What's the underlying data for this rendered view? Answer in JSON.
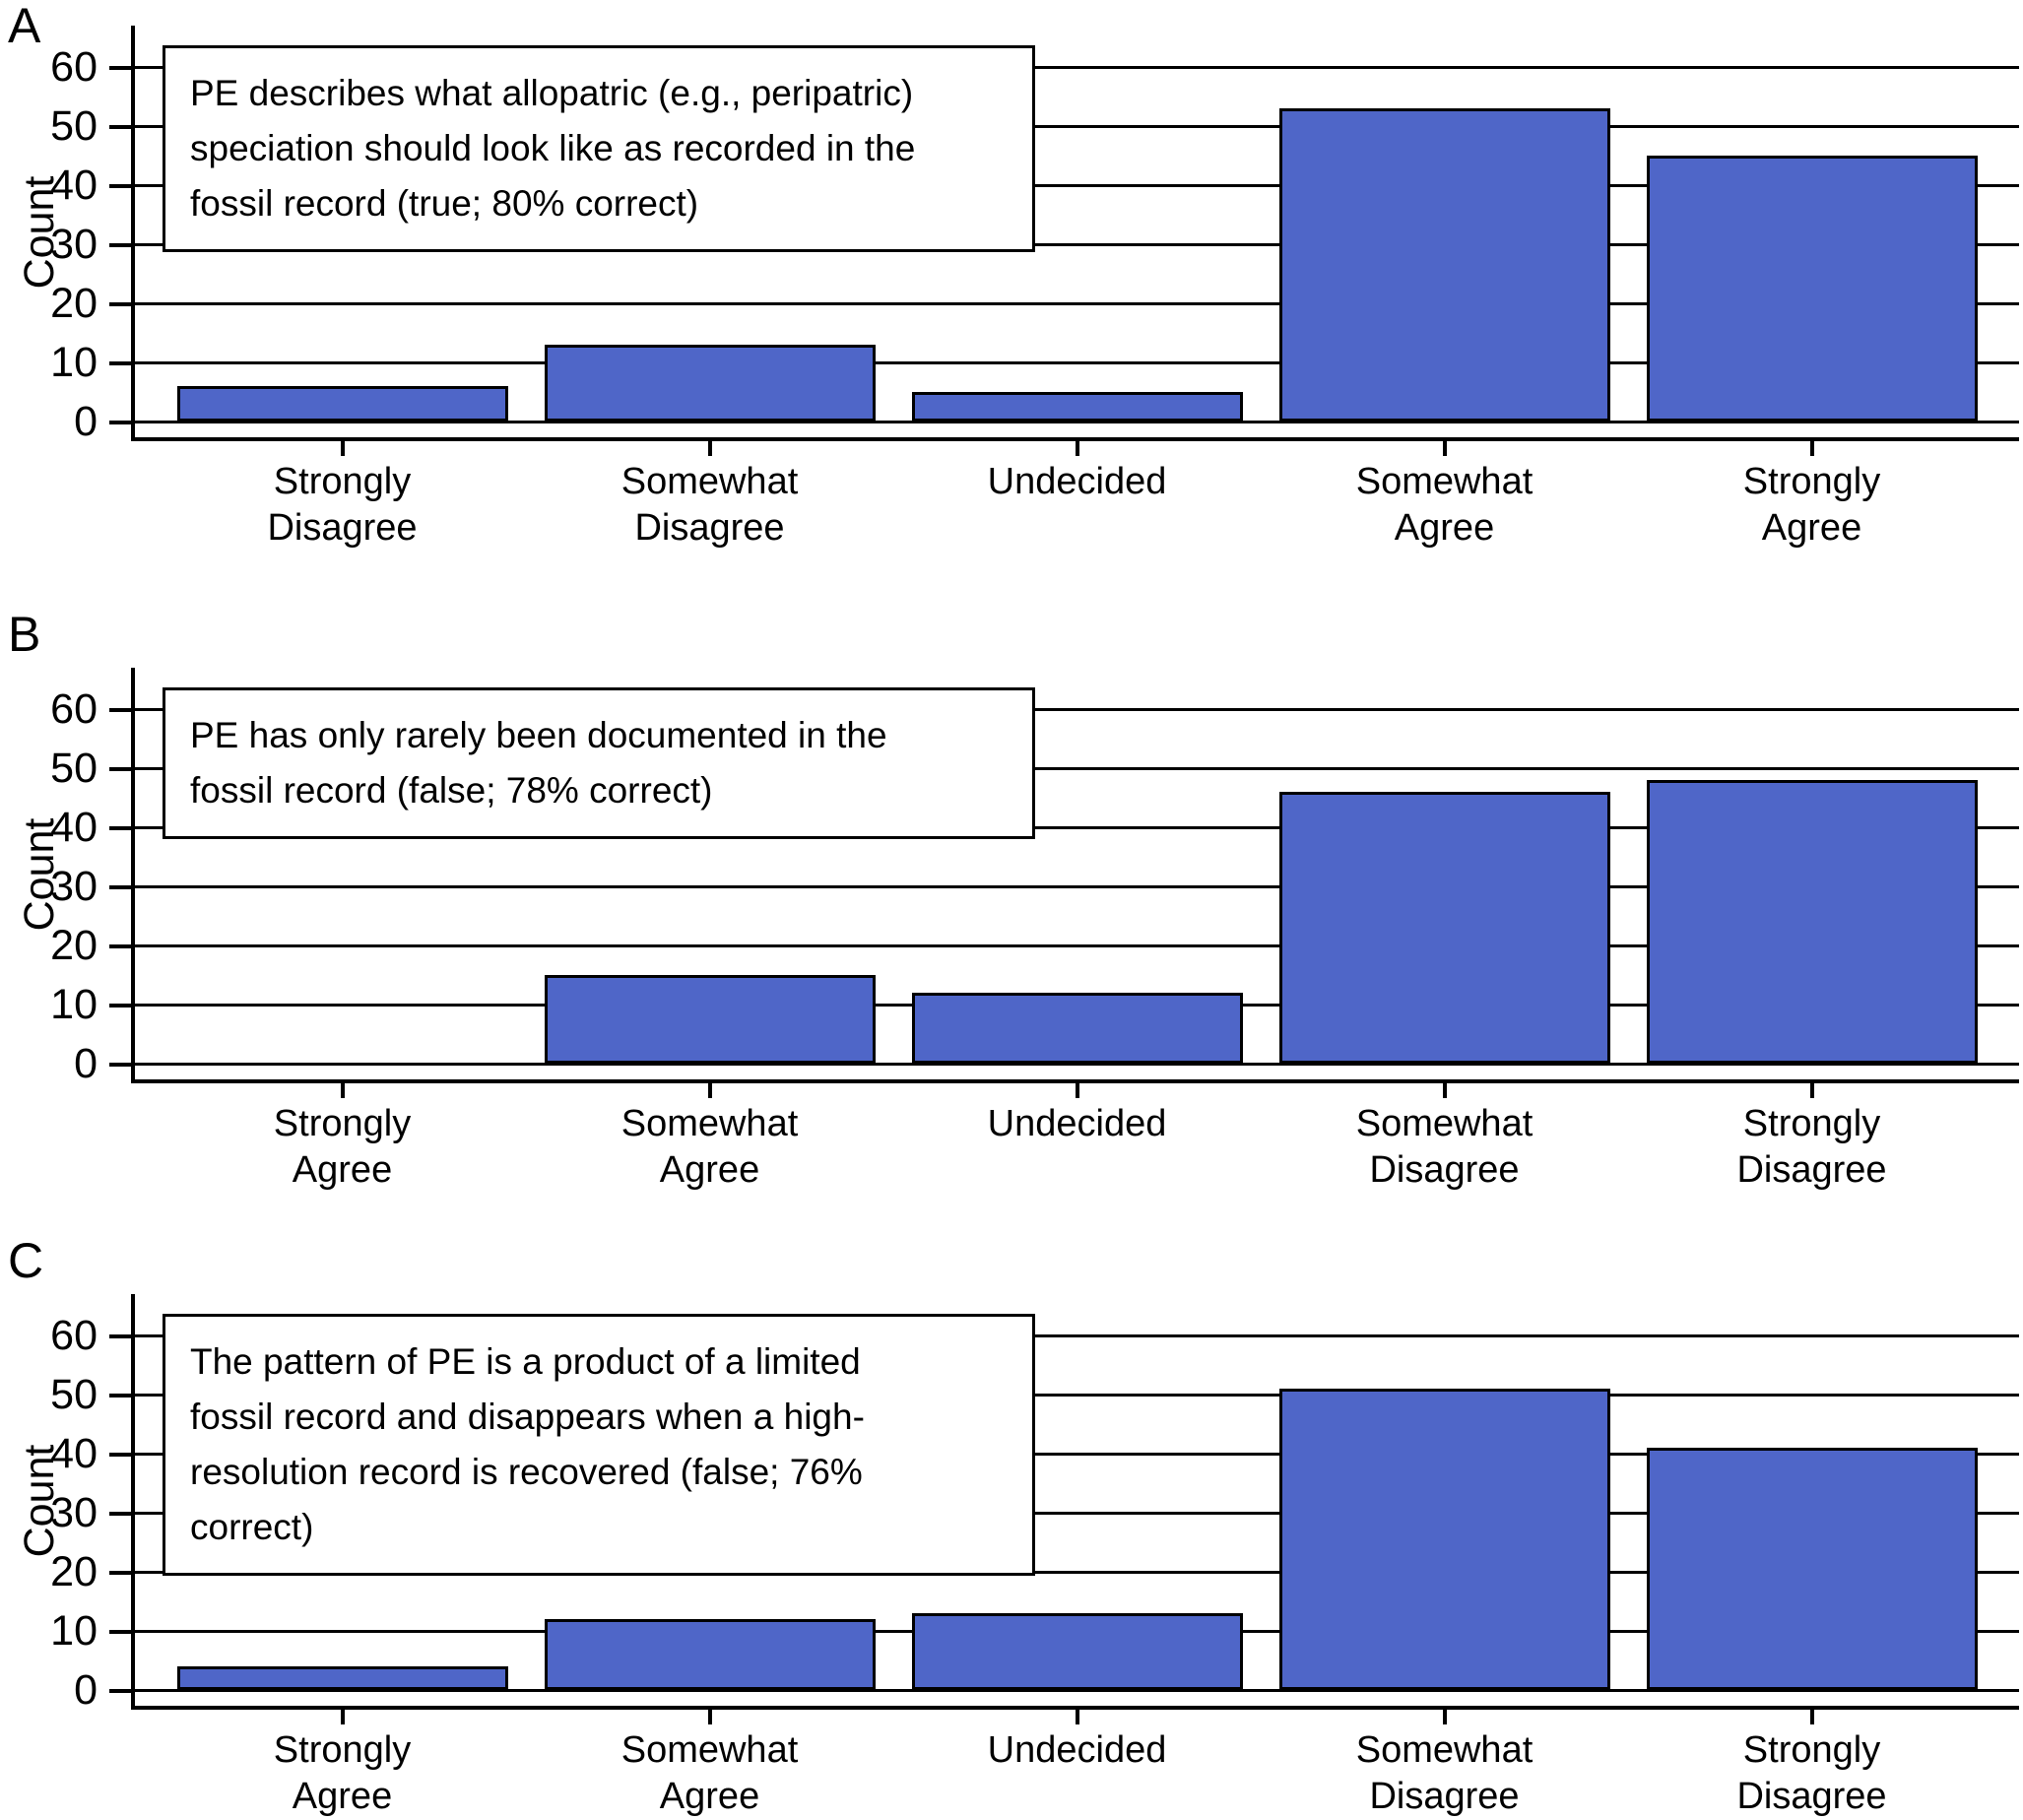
{
  "figure_title": "",
  "chart_data": [
    {
      "type": "bar",
      "panel_label": "A",
      "annotation": "PE describes what allopatric (e.g., peripatric)\nspeciation should look like as recorded in the\nfossil record (true; 80% correct)",
      "categories": [
        "Strongly\nDisagree",
        "Somewhat\nDisagree",
        "Undecided",
        "Somewhat\nAgree",
        "Strongly\nAgree"
      ],
      "values": [
        6,
        13,
        5,
        53,
        45
      ],
      "xlabel": "",
      "ylabel": "Count",
      "ylim": [
        0,
        66
      ],
      "yticks": [
        0,
        10,
        20,
        30,
        40,
        50,
        60
      ],
      "grid": "horizontal",
      "legend": "none",
      "bar_color": "#4f66c8",
      "bar_border_color": "#000000"
    },
    {
      "type": "bar",
      "panel_label": "B",
      "annotation": "PE has only rarely been documented in the\nfossil record (false; 78% correct)",
      "categories": [
        "Strongly\nAgree",
        "Somewhat\nAgree",
        "Undecided",
        "Somewhat\nDisagree",
        "Strongly\nDisagree"
      ],
      "values": [
        0,
        15,
        12,
        46,
        48
      ],
      "xlabel": "",
      "ylabel": "Count",
      "ylim": [
        0,
        66
      ],
      "yticks": [
        0,
        10,
        20,
        30,
        40,
        50,
        60
      ],
      "grid": "horizontal",
      "legend": "none",
      "bar_color": "#4f66c8",
      "bar_border_color": "#000000"
    },
    {
      "type": "bar",
      "panel_label": "C",
      "annotation": "The pattern of PE is a product of a limited\nfossil record and disappears when a high-\nresolution record is recovered (false; 76%\ncorrect)",
      "categories": [
        "Strongly\nAgree",
        "Somewhat\nAgree",
        "Undecided",
        "Somewhat\nDisagree",
        "Strongly\nDisagree"
      ],
      "values": [
        4,
        12,
        13,
        51,
        41
      ],
      "xlabel": "",
      "ylabel": "Count",
      "ylim": [
        0,
        66
      ],
      "yticks": [
        0,
        10,
        20,
        30,
        40,
        50,
        60
      ],
      "grid": "horizontal",
      "legend": "none",
      "bar_color": "#4f66c8",
      "bar_border_color": "#000000"
    }
  ]
}
